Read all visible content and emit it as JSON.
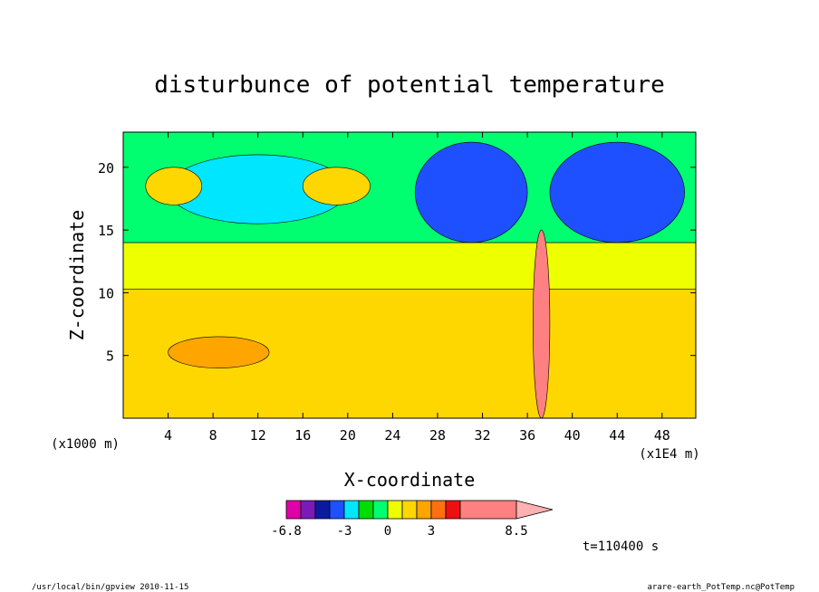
{
  "chart_data": {
    "type": "heatmap",
    "title": "disturbunce of potential temperature",
    "xlabel": "X-coordinate",
    "ylabel": "Z-coordinate",
    "x_unit_label": "(x1E4 m)",
    "y_unit_label": "(x1000 m)",
    "xlim": [
      0,
      51
    ],
    "ylim": [
      0,
      22.8
    ],
    "xticks": [
      4,
      8,
      12,
      16,
      20,
      24,
      28,
      32,
      36,
      40,
      44,
      48
    ],
    "yticks": [
      5,
      10,
      15,
      20
    ],
    "colorbar": {
      "tick_labels": [
        "-6.8",
        "-3",
        "0",
        "3",
        "8.5"
      ],
      "tick_values": [
        -6.8,
        -3,
        0,
        3,
        8.5
      ],
      "levels": [
        -6.8,
        -6,
        -5,
        -4,
        -3,
        -2,
        -1,
        0,
        1,
        2,
        3,
        4,
        5,
        8.5
      ],
      "colors": [
        "#e000a8",
        "#7a1ab8",
        "#0a1aa0",
        "#1e50ff",
        "#00e6ff",
        "#00dd00",
        "#00ff70",
        "#eeff00",
        "#ffd700",
        "#ffa500",
        "#ff7010",
        "#ee1010",
        "#ff8080",
        "#ffb0b0"
      ]
    },
    "time_label": "t=110400 s",
    "regions": [
      {
        "x": [
          0,
          51
        ],
        "z": [
          0,
          10.3
        ],
        "value": 1.5
      },
      {
        "x": [
          0,
          51
        ],
        "z": [
          10.3,
          14
        ],
        "value": 0.5
      },
      {
        "x": [
          0,
          51
        ],
        "z": [
          14,
          22.8
        ],
        "value": -0.5
      },
      {
        "x": [
          4,
          13
        ],
        "z": [
          4,
          6.5
        ],
        "value": 2.5
      },
      {
        "x": [
          4,
          20
        ],
        "z": [
          15.5,
          21
        ],
        "value": -2.5
      },
      {
        "x": [
          2,
          7
        ],
        "z": [
          17,
          20
        ],
        "value": 1.5
      },
      {
        "x": [
          16,
          22
        ],
        "z": [
          17,
          20
        ],
        "value": 1.5
      },
      {
        "x": [
          26,
          36
        ],
        "z": [
          14,
          22
        ],
        "value": -3.5
      },
      {
        "x": [
          38,
          50
        ],
        "z": [
          14,
          22
        ],
        "value": -3.5
      },
      {
        "x": [
          36.5,
          38
        ],
        "z": [
          0,
          15
        ],
        "value": 5
      }
    ]
  },
  "footer": {
    "left": "/usr/local/bin/gpview  2010-11-15",
    "right": "arare-earth_PotTemp.nc@PotTemp"
  }
}
